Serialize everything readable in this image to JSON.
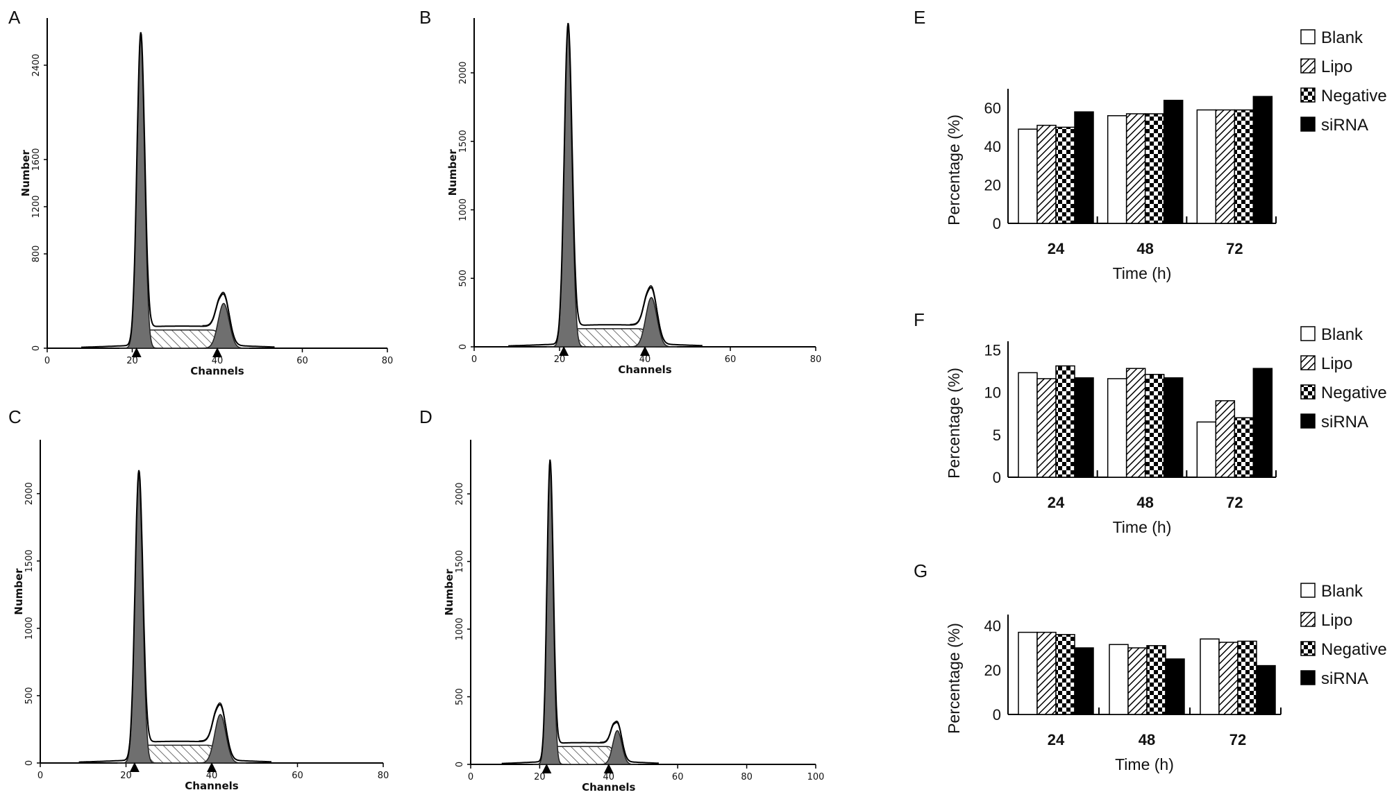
{
  "patterns": {
    "Blank": "white",
    "Lipo": "diag",
    "Negative": "check",
    "siRNA": "black"
  },
  "chart_data": [
    {
      "id": "A",
      "type": "area",
      "panel_label": "A",
      "xlabel": "Channels",
      "ylabel": "Number",
      "xlim": [
        0,
        80
      ],
      "xticks": [
        0,
        20,
        40,
        60,
        80
      ],
      "ylim": [
        0,
        2800
      ],
      "yticks": [
        0,
        800,
        1200,
        1600,
        2400
      ],
      "peak1_x": 22,
      "peak1_y": 2640,
      "peak2_x": 41.5,
      "peak2_y": 380,
      "markers": [
        21,
        40
      ],
      "grid": false
    },
    {
      "id": "B",
      "type": "area",
      "panel_label": "B",
      "xlabel": "Channels",
      "ylabel": "Number",
      "xlim": [
        0,
        80
      ],
      "xticks": [
        0,
        20,
        40,
        60,
        80
      ],
      "ylim": [
        0,
        2400
      ],
      "yticks": [
        0,
        500,
        1000,
        1500,
        2000
      ],
      "peak1_x": 22,
      "peak1_y": 2330,
      "peak2_x": 41.5,
      "peak2_y": 360,
      "markers": [
        21,
        40
      ],
      "grid": false
    },
    {
      "id": "C",
      "type": "area",
      "panel_label": "C",
      "xlabel": "Channels",
      "ylabel": "Number",
      "xlim": [
        0,
        80
      ],
      "xticks": [
        0,
        20,
        40,
        60,
        80
      ],
      "ylim": [
        0,
        2400
      ],
      "yticks": [
        0,
        500,
        1000,
        1500,
        2000
      ],
      "peak1_x": 23,
      "peak1_y": 2140,
      "peak2_x": 42,
      "peak2_y": 360,
      "markers": [
        22,
        40
      ],
      "grid": false
    },
    {
      "id": "D",
      "type": "area",
      "panel_label": "D",
      "xlabel": "Channels",
      "ylabel": "Number",
      "xlim": [
        0,
        100
      ],
      "xticks": [
        0,
        20,
        40,
        60,
        80,
        100
      ],
      "ylim": [
        0,
        2400
      ],
      "yticks": [
        0,
        500,
        1000,
        1500,
        2000
      ],
      "peak1_x": 23,
      "peak1_y": 2220,
      "peak2_x": 42.5,
      "peak2_y": 250,
      "markers": [
        22,
        40
      ],
      "grid": false
    },
    {
      "id": "E",
      "type": "bar",
      "panel_label": "E",
      "categories": [
        "24",
        "48",
        "72"
      ],
      "series": [
        {
          "name": "Blank",
          "values": [
            49,
            56,
            59
          ]
        },
        {
          "name": "Lipo",
          "values": [
            51,
            57,
            59
          ]
        },
        {
          "name": "Negative",
          "values": [
            50,
            57,
            59
          ]
        },
        {
          "name": "siRNA",
          "values": [
            58,
            64,
            66
          ]
        }
      ],
      "xlabel": "Time (h)",
      "ylabel": "Percentage (%)",
      "ylim": [
        0,
        70
      ],
      "yticks": [
        0,
        20,
        40,
        60
      ],
      "legend": "right"
    },
    {
      "id": "F",
      "type": "bar",
      "panel_label": "F",
      "categories": [
        "24",
        "48",
        "72"
      ],
      "series": [
        {
          "name": "Blank",
          "values": [
            12.3,
            11.6,
            6.5
          ]
        },
        {
          "name": "Lipo",
          "values": [
            11.6,
            12.8,
            9.0
          ]
        },
        {
          "name": "Negative",
          "values": [
            13.1,
            12.1,
            7.0
          ]
        },
        {
          "name": "siRNA",
          "values": [
            11.7,
            11.7,
            12.8
          ]
        }
      ],
      "xlabel": "Time (h)",
      "ylabel": "Percentage (%)",
      "ylim": [
        0,
        16
      ],
      "yticks": [
        0,
        5,
        10,
        15
      ],
      "legend": "right"
    },
    {
      "id": "G",
      "type": "bar",
      "panel_label": "G",
      "categories": [
        "24",
        "48",
        "72"
      ],
      "series": [
        {
          "name": "Blank",
          "values": [
            37,
            31.5,
            34
          ]
        },
        {
          "name": "Lipo",
          "values": [
            37,
            30,
            32.5
          ]
        },
        {
          "name": "Negative",
          "values": [
            36,
            31,
            33
          ]
        },
        {
          "name": "siRNA",
          "values": [
            30,
            25,
            22
          ]
        }
      ],
      "xlabel": "Time (h)",
      "ylabel": "Percentage (%)",
      "ylim": [
        0,
        45
      ],
      "yticks": [
        0,
        20,
        40
      ],
      "legend": "right"
    }
  ]
}
